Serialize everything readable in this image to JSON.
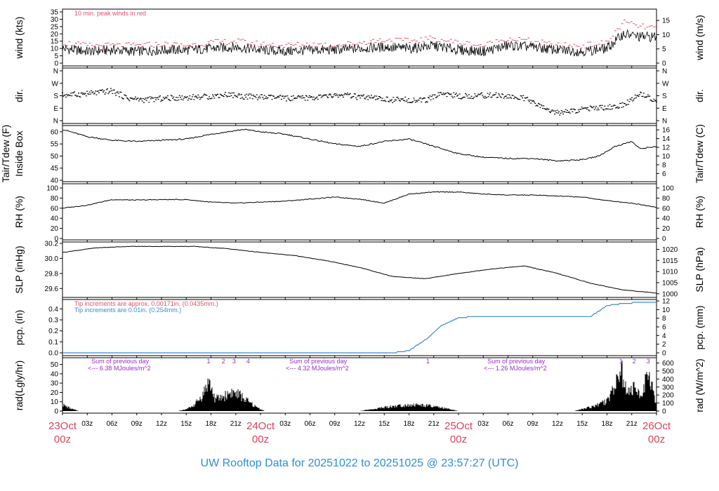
{
  "footer_title": "UW Rooftop Data for 20251022  to  20251025 @ 23:57:27  (UTC)",
  "colors": {
    "peak": "#e0506a",
    "rain_blue": "#3a8ad0",
    "solar_purple": "#9a2ad2",
    "date_red": "#d9435a",
    "footer_blue": "#2b8fd6"
  },
  "x_axis": {
    "hour_ticks": [
      "03z",
      "06z",
      "09z",
      "12z",
      "15z",
      "18z",
      "21z"
    ],
    "days": [
      {
        "day": "23Oct",
        "hour": "00z"
      },
      {
        "day": "24Oct",
        "hour": "00z"
      },
      {
        "day": "25Oct",
        "hour": "00z"
      },
      {
        "day": "26Oct",
        "hour": "00z"
      }
    ]
  },
  "panels": {
    "wind": {
      "left_label": "wind (kts)",
      "right_label": "wind (m/s)",
      "left_ticks": [
        "0",
        "5",
        "10",
        "15",
        "20",
        "25",
        "30",
        "35"
      ],
      "right_ticks": [
        "0",
        "5",
        "10",
        "15"
      ],
      "note": "10 min. peak winds in red"
    },
    "dir": {
      "left_label": "dir.",
      "right_label": "dir.",
      "ticks": [
        "N",
        "E",
        "S",
        "W",
        "N"
      ]
    },
    "temp": {
      "left_label_1": "Tair/Tdew (F)",
      "left_label_2": "Inside Box",
      "right_label": "Tair/Tdew (C)",
      "left_ticks": [
        "40",
        "45",
        "50",
        "55",
        "60"
      ],
      "right_ticks": [
        "6",
        "8",
        "10",
        "12",
        "14",
        "16"
      ]
    },
    "rh": {
      "left_label": "RH (%)",
      "right_label": "RH (%)",
      "ticks": [
        "0",
        "20",
        "40",
        "60",
        "80",
        "100"
      ]
    },
    "slp": {
      "left_label": "SLP (inHg)",
      "right_label": "SLP (hPa)",
      "left_ticks": [
        "29.6",
        "29.8",
        "30.0",
        "30.2"
      ],
      "right_ticks": [
        "1000",
        "1005",
        "1010",
        "1015",
        "1020"
      ]
    },
    "pcp": {
      "left_label": "pcp. (in)",
      "right_label": "pcp. (mm)",
      "left_ticks": [
        "0.0",
        "0.1",
        "0.2",
        "0.3",
        "0.4"
      ],
      "right_ticks": [
        "0",
        "2",
        "4",
        "6",
        "8",
        "10",
        "12"
      ],
      "note_1": "Tip increments are approx. 0.00171in. (0.0435mm.)",
      "note_2": "Tip increments are 0.01in. (0.254mm.)"
    },
    "rad": {
      "left_label": "rad(Lgly/hr)",
      "right_label": "rad (W/m^2)",
      "left_ticks": [
        "0",
        "10",
        "20",
        "30",
        "40",
        "50"
      ],
      "right_ticks": [
        "0",
        "100",
        "200",
        "300",
        "400",
        "500",
        "600"
      ],
      "sums": [
        {
          "line1": "Sum of previous day",
          "line2": "<--- 6.38 MJoules/m^2"
        },
        {
          "line1": "Sum of previous day",
          "line2": "<--- 4.32 MJoules/m^2"
        },
        {
          "line1": "Sum of previous day",
          "line2": "<--- 1.26 MJoules/m^2"
        }
      ],
      "markers": [
        {
          "label": "1",
          "hour": 17.7
        },
        {
          "label": "2",
          "hour": 19.5
        },
        {
          "label": "3",
          "hour": 20.8
        },
        {
          "label": "4",
          "hour": 22.5
        },
        {
          "label": "1",
          "hour": 44.3
        },
        {
          "label": "1",
          "hour": 67.7
        },
        {
          "label": "2",
          "hour": 69.3
        },
        {
          "label": "3",
          "hour": 71.0
        }
      ]
    }
  },
  "chart_data": [
    {
      "type": "line",
      "name": "wind",
      "xlabel": "",
      "ylabel": "wind (kts)",
      "ylim": [
        0,
        36
      ],
      "hours": [
        0,
        3,
        6,
        9,
        12,
        15,
        18,
        21,
        24,
        27,
        30,
        33,
        36,
        39,
        42,
        45,
        48,
        51,
        54,
        57,
        60,
        63,
        66,
        68,
        70,
        72
      ],
      "values": [
        10,
        8,
        9,
        8,
        9,
        9,
        10,
        11,
        9,
        8,
        9,
        9,
        10,
        11,
        10,
        12,
        9,
        8,
        12,
        11,
        9,
        8,
        10,
        20,
        18,
        18
      ],
      "peak_values": [
        14,
        12,
        12,
        12,
        13,
        12,
        14,
        15,
        13,
        12,
        13,
        12,
        14,
        16,
        15,
        17,
        14,
        12,
        17,
        15,
        12,
        12,
        14,
        28,
        25,
        24
      ]
    },
    {
      "type": "scatter",
      "name": "direction",
      "ylabel": "dir.",
      "ylim": [
        0,
        360
      ],
      "hours": [
        0,
        2,
        4,
        6,
        8,
        10,
        12,
        14,
        16,
        18,
        20,
        22,
        24,
        26,
        28,
        30,
        32,
        34,
        36,
        38,
        40,
        42,
        44,
        46,
        48,
        50,
        52,
        54,
        56,
        58,
        60,
        62,
        64,
        66,
        68,
        70,
        72
      ],
      "values": [
        185,
        190,
        200,
        215,
        160,
        150,
        160,
        165,
        170,
        175,
        190,
        175,
        170,
        165,
        160,
        165,
        175,
        185,
        170,
        160,
        150,
        150,
        145,
        200,
        175,
        180,
        185,
        175,
        160,
        100,
        55,
        70,
        90,
        95,
        110,
        195,
        145
      ]
    },
    {
      "type": "line",
      "name": "temperature",
      "ylabel": "Tair/Tdew (F)",
      "ylim": [
        40,
        62
      ],
      "hours": [
        0,
        3,
        6,
        9,
        12,
        15,
        18,
        20,
        22,
        24,
        27,
        30,
        33,
        36,
        39,
        42,
        45,
        48,
        51,
        54,
        57,
        60,
        63,
        65,
        67,
        69,
        70,
        72
      ],
      "values": [
        61,
        58,
        56.5,
        56,
        56.5,
        57,
        59,
        60,
        61,
        60,
        59,
        57,
        55,
        54,
        56,
        57,
        54,
        51,
        49.5,
        49,
        49,
        48,
        48.5,
        50,
        54,
        56,
        53,
        54
      ]
    },
    {
      "type": "line",
      "name": "rh",
      "ylabel": "RH (%)",
      "ylim": [
        0,
        100
      ],
      "hours": [
        0,
        3,
        6,
        9,
        12,
        15,
        18,
        21,
        24,
        27,
        30,
        33,
        36,
        39,
        42,
        45,
        48,
        51,
        54,
        57,
        60,
        63,
        66,
        69,
        72
      ],
      "values": [
        60,
        66,
        77,
        76,
        77,
        77,
        72,
        70,
        72,
        74,
        78,
        82,
        78,
        70,
        88,
        92,
        92,
        88,
        86,
        86,
        84,
        82,
        75,
        70,
        62
      ]
    },
    {
      "type": "line",
      "name": "slp",
      "ylabel": "SLP (inHg)",
      "ylim": [
        29.5,
        30.2
      ],
      "hours": [
        0,
        4,
        8,
        12,
        16,
        20,
        24,
        28,
        32,
        36,
        40,
        44,
        48,
        52,
        56,
        60,
        64,
        68,
        72
      ],
      "values": [
        30.08,
        30.14,
        30.16,
        30.16,
        30.16,
        30.13,
        30.08,
        30.04,
        29.97,
        29.88,
        29.76,
        29.73,
        29.8,
        29.86,
        29.9,
        29.8,
        29.67,
        29.58,
        29.54
      ]
    },
    {
      "type": "line",
      "name": "precipitation",
      "ylabel": "pcp. (in)",
      "ylim": [
        0,
        0.45
      ],
      "hours": [
        0,
        24,
        38,
        40,
        42,
        44,
        46,
        48,
        50,
        52,
        54,
        56,
        58,
        60,
        62,
        64,
        66,
        68,
        70,
        72
      ],
      "values": [
        0,
        0,
        0,
        0,
        0.02,
        0.12,
        0.25,
        0.32,
        0.33,
        0.33,
        0.33,
        0.33,
        0.33,
        0.33,
        0.33,
        0.33,
        0.43,
        0.45,
        0.46,
        0.46
      ]
    },
    {
      "type": "area",
      "name": "radiation",
      "ylabel": "rad(Lgly/hr)",
      "ylim": [
        0,
        55
      ],
      "hours": [
        0,
        1,
        2,
        12,
        14,
        15,
        16,
        17,
        17.7,
        18.5,
        19.5,
        20.5,
        21.5,
        22.5,
        23.5,
        24.5,
        36,
        38,
        40,
        42,
        44,
        46,
        48,
        60,
        62,
        64,
        66,
        67.7,
        68.5,
        69.3,
        70,
        71,
        72
      ],
      "values": [
        8,
        3,
        0,
        0,
        0,
        2,
        8,
        20,
        38,
        15,
        18,
        24,
        20,
        12,
        5,
        0,
        0,
        3,
        6,
        8,
        7,
        4,
        0,
        0,
        0,
        5,
        12,
        52,
        22,
        28,
        20,
        45,
        10
      ]
    }
  ]
}
